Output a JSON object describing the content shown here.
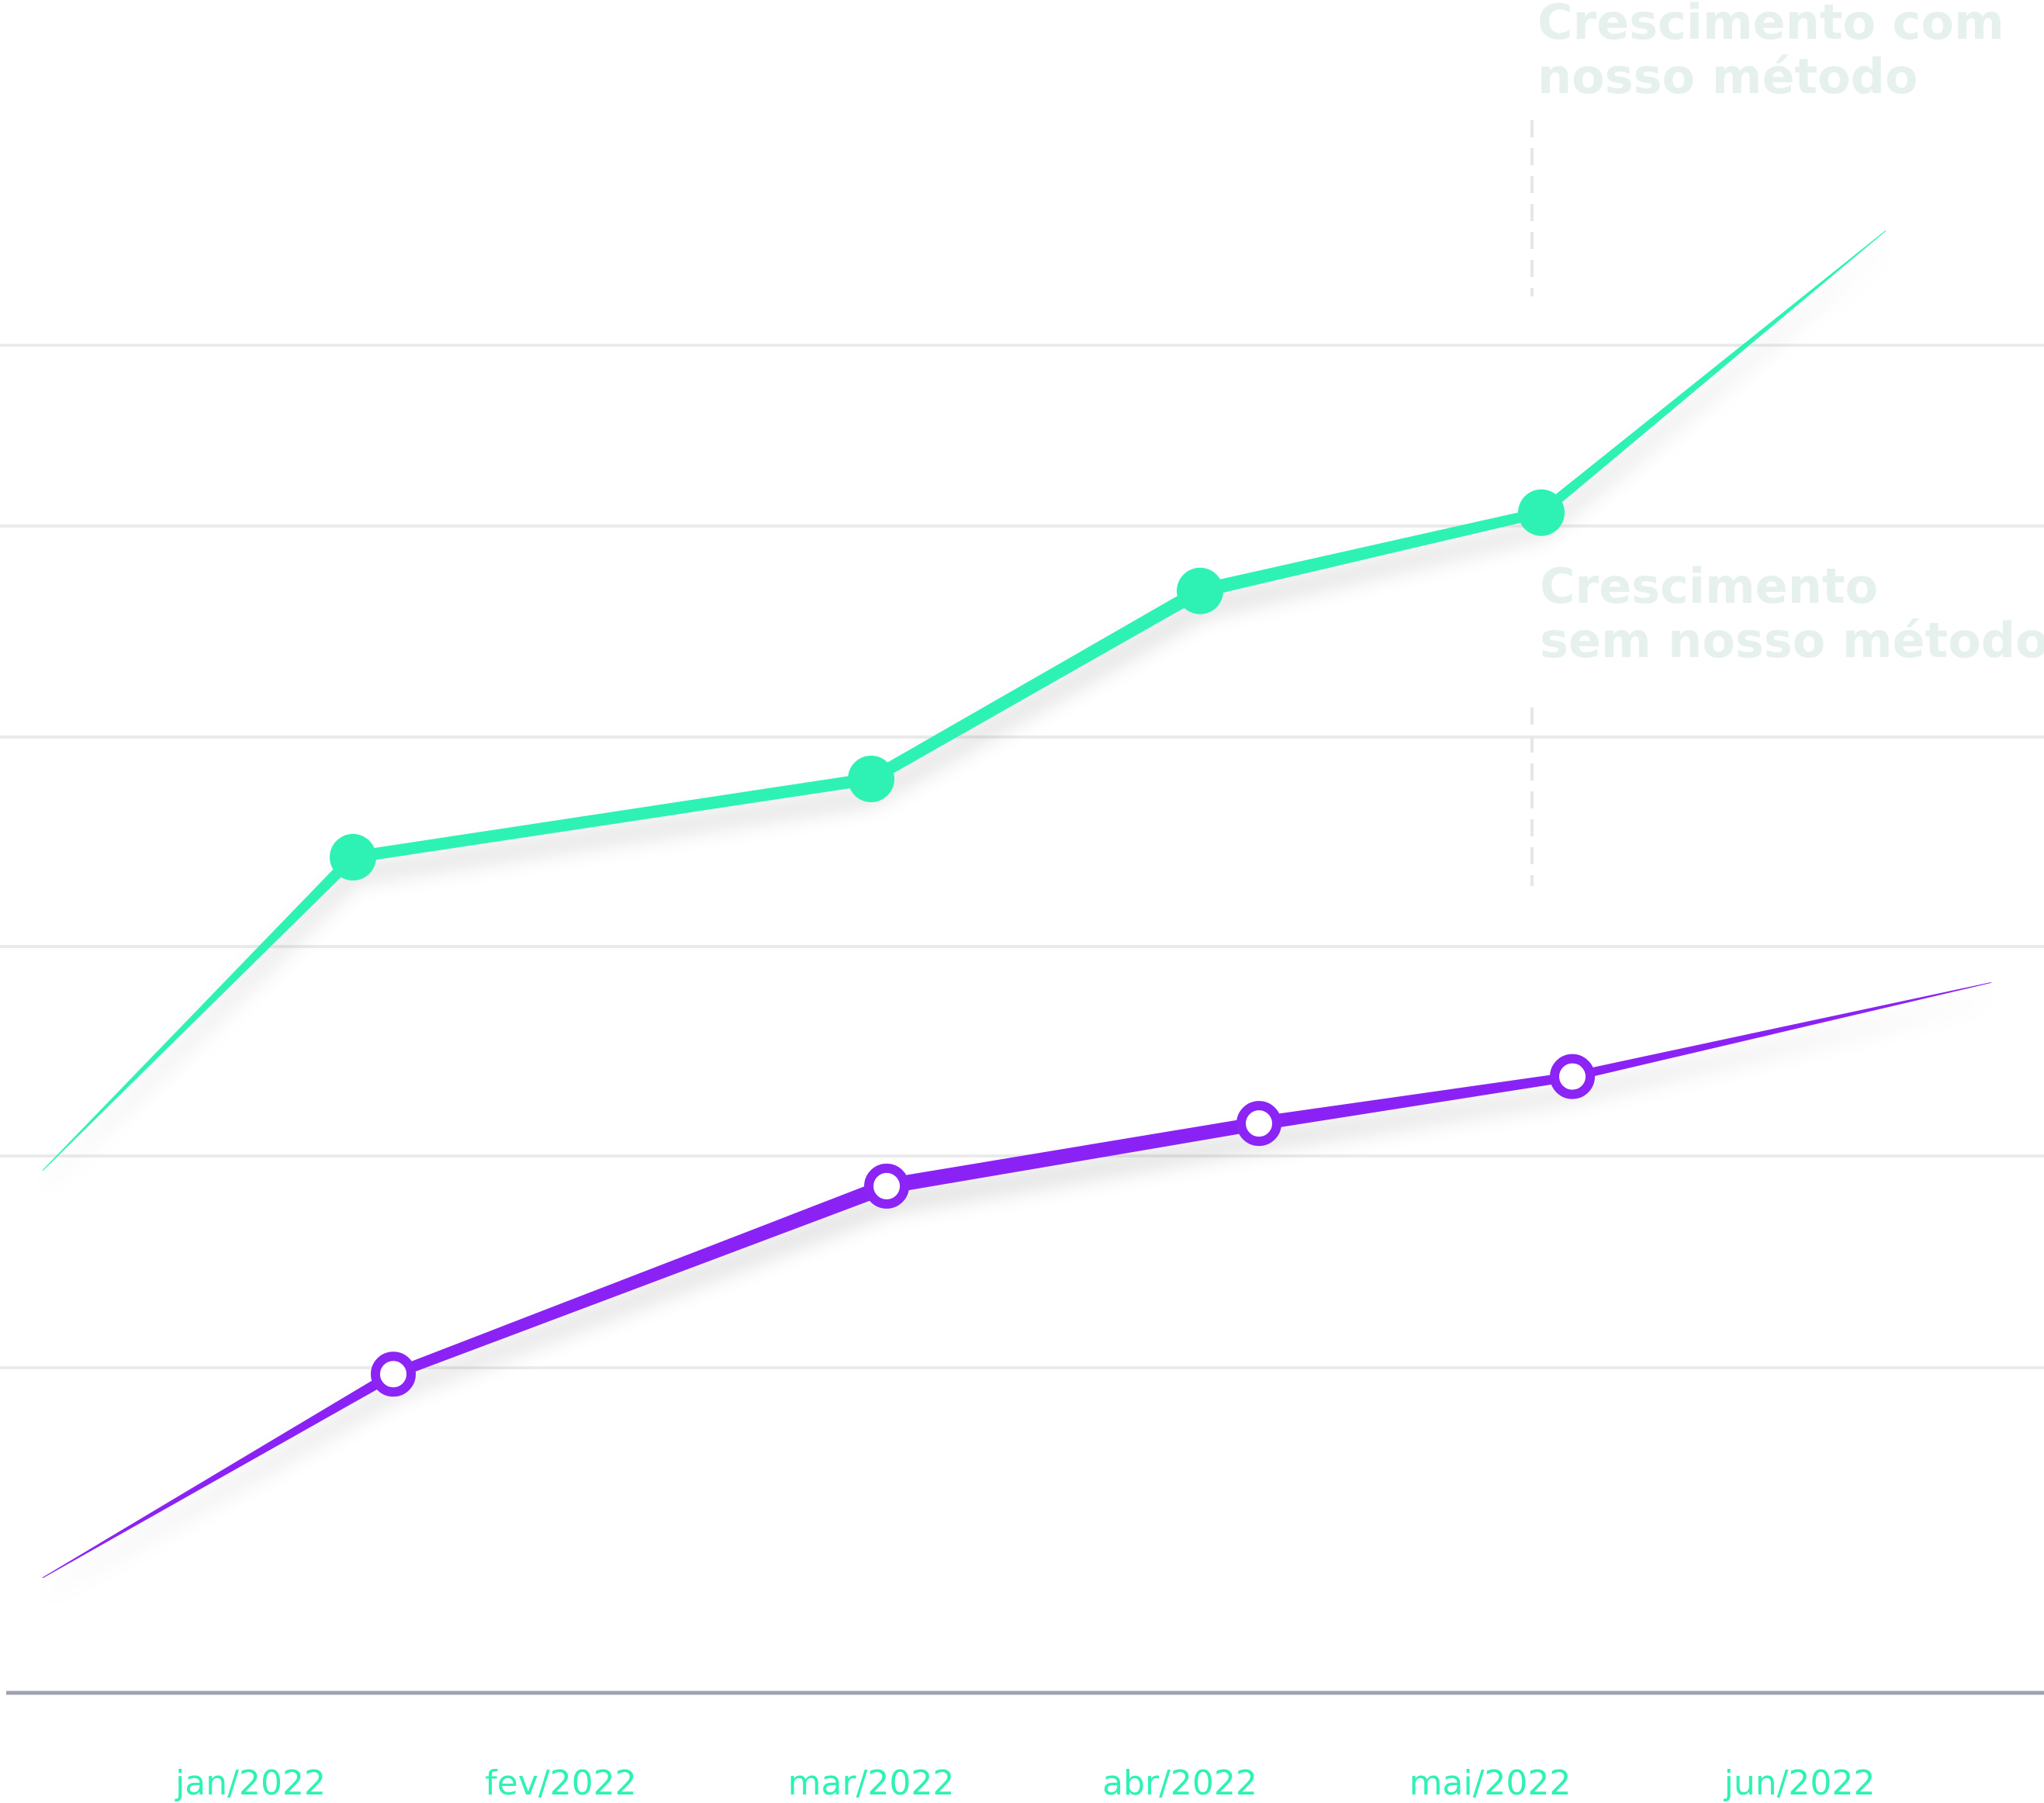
{
  "chart_data": {
    "type": "line",
    "title": "",
    "xlabel": "",
    "ylabel": "",
    "categories": [
      "jan/2022",
      "fev/2022",
      "mar/2022",
      "abr/2022",
      "mai/2022",
      "jun/2022"
    ],
    "ylim": [
      0,
      100
    ],
    "grid": true,
    "series": [
      {
        "name": "Crescimento com nosso método",
        "label_lines": [
          "Crescimento com",
          "nosso método"
        ],
        "color": "#2ef2b4",
        "marker": "filled-circle",
        "x": [
          0.0,
          1.0,
          2.67,
          3.73,
          4.83,
          5.94
        ],
        "values": [
          33,
          53,
          58,
          70,
          75,
          93
        ]
      },
      {
        "name": "Crescimento sem nosso método",
        "label_lines": [
          "Crescimento",
          "sem nosso método"
        ],
        "color": "#8b24f5",
        "marker": "hollow-circle",
        "x": [
          0.0,
          1.13,
          2.72,
          3.92,
          4.93,
          6.28
        ],
        "values": [
          7,
          20,
          32,
          36,
          39,
          45
        ]
      }
    ]
  }
}
